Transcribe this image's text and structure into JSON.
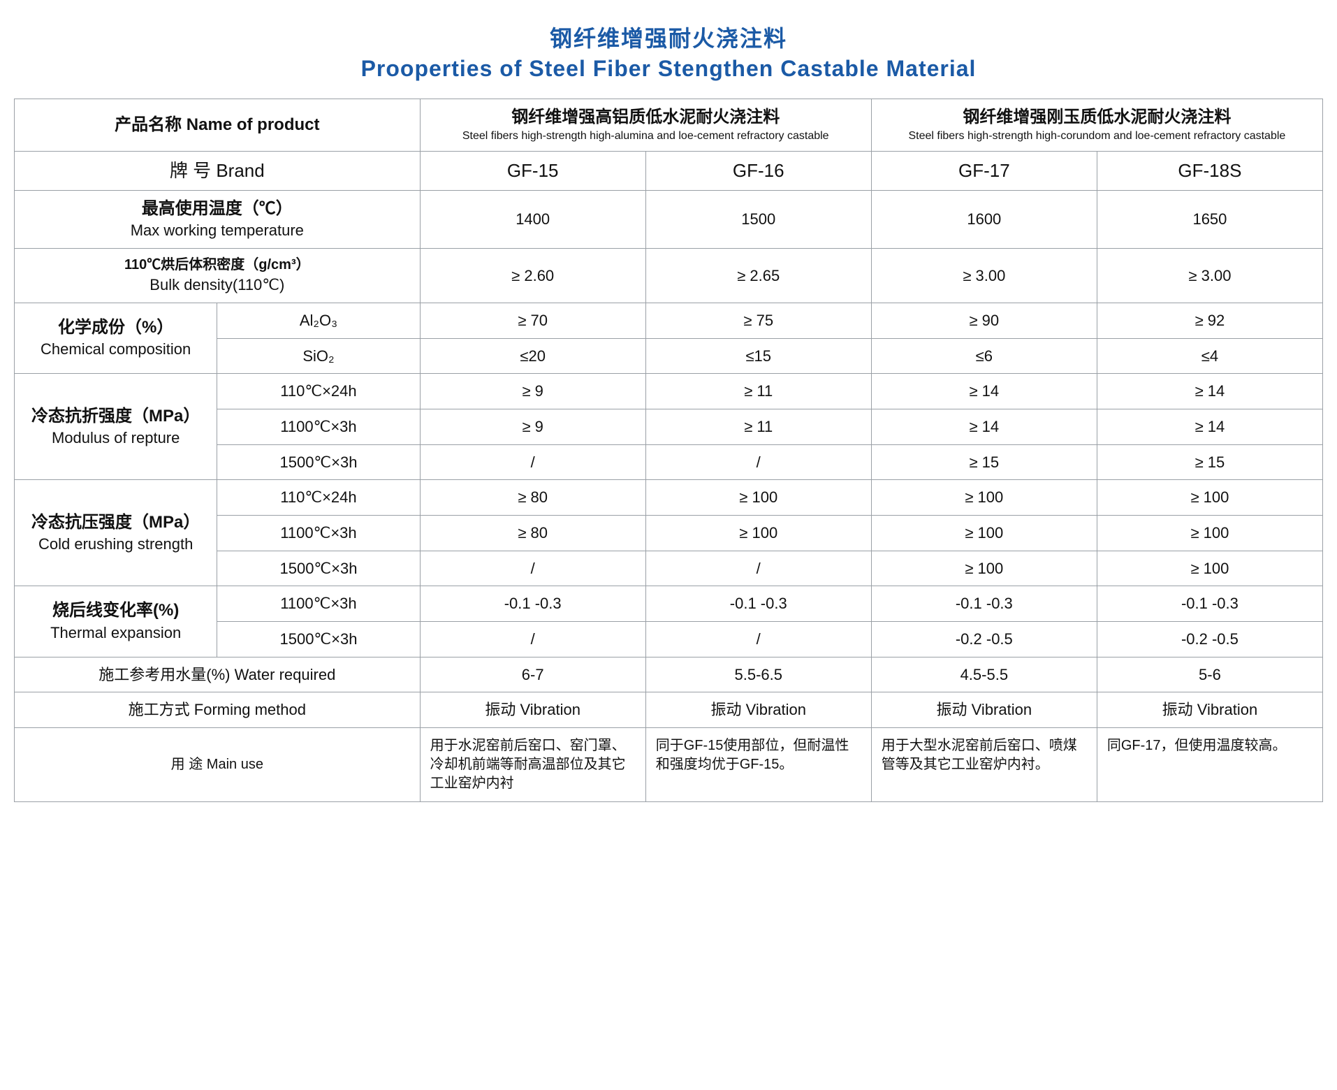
{
  "title_cn": "钢纤维增强耐火浇注料",
  "title_en": "Prooperties of Steel Fiber Stengthen Castable Material",
  "head": {
    "name_product": "产品名称  Name of product",
    "group1_cn": "钢纤维增强高铝质低水泥耐火浇注料",
    "group1_en": "Steel fibers high-strength high-alumina and loe-cement refractory castable",
    "group2_cn": "钢纤维增强刚玉质低水泥耐火浇注料",
    "group2_en": "Steel fibers high-strength high-corundom and loe-cement refractory castable",
    "brand_label": "牌 号  Brand",
    "brands": [
      "GF-15",
      "GF-16",
      "GF-17",
      "GF-18S"
    ]
  },
  "rows": {
    "max_temp_label_cn": "最高使用温度（℃）",
    "max_temp_label_en": "Max working temperature",
    "max_temp": [
      "1400",
      "1500",
      "1600",
      "1650"
    ],
    "bulk_label_cn": "110℃烘后体积密度（g/cm³）",
    "bulk_label_en": "Bulk density(110℃)",
    "bulk": [
      "≥ 2.60",
      "≥ 2.65",
      "≥ 3.00",
      "≥ 3.00"
    ],
    "chem_label_cn": "化学成份（%）",
    "chem_label_en": "Chemical composition",
    "al2o3_label": "Al₂O₃",
    "al2o3": [
      "≥ 70",
      "≥ 75",
      "≥ 90",
      "≥ 92"
    ],
    "sio2_label": "SiO₂",
    "sio2": [
      "≤20",
      "≤15",
      "≤6",
      "≤4"
    ],
    "mor_label_cn": "冷态抗折强度（MPa）",
    "mor_label_en": "Modulus of repture",
    "mor_c1": "110℃×24h",
    "mor_c2": "1100℃×3h",
    "mor_c3": "1500℃×3h",
    "mor1": [
      "≥ 9",
      "≥ 11",
      "≥ 14",
      "≥ 14"
    ],
    "mor2": [
      "≥ 9",
      "≥ 11",
      "≥ 14",
      "≥ 14"
    ],
    "mor3": [
      "/",
      "/",
      "≥ 15",
      "≥ 15"
    ],
    "ccs_label_cn": "冷态抗压强度（MPa）",
    "ccs_label_en": "Cold erushing strength",
    "ccs1": [
      "≥ 80",
      "≥ 100",
      "≥ 100",
      "≥ 100"
    ],
    "ccs2": [
      "≥ 80",
      "≥ 100",
      "≥ 100",
      "≥ 100"
    ],
    "ccs3": [
      "/",
      "/",
      "≥ 100",
      "≥ 100"
    ],
    "te_label_cn": "烧后线变化率(%)",
    "te_label_en": "Thermal expansion",
    "te_c1": "1100℃×3h",
    "te_c2": "1500℃×3h",
    "te1": [
      "-0.1   -0.3",
      "-0.1   -0.3",
      "-0.1   -0.3",
      "-0.1   -0.3"
    ],
    "te2": [
      "/",
      "/",
      "-0.2   -0.5",
      "-0.2   -0.5"
    ],
    "water_label": "施工参考用水量(%)  Water required",
    "water": [
      "6-7",
      "5.5-6.5",
      "4.5-5.5",
      "5-6"
    ],
    "form_label": "施工方式  Forming method",
    "form": [
      "振动 Vibration",
      "振动 Vibration",
      "振动 Vibration",
      "振动 Vibration"
    ],
    "use_label": "用 途  Main use",
    "use": [
      "用于水泥窑前后窑口、窑门罩、冷却机前端等耐高温部位及其它工业窑炉内衬",
      "同于GF-15使用部位，但耐温性和强度均优于GF-15。",
      "用于大型水泥窑前后窑口、喷煤管等及其它工业窑炉内衬。",
      "同GF-17，但使用温度较高。"
    ]
  },
  "colors": {
    "title": "#1b5aa6",
    "border": "#9aa0a6",
    "text": "#111111",
    "bg": "#ffffff"
  }
}
